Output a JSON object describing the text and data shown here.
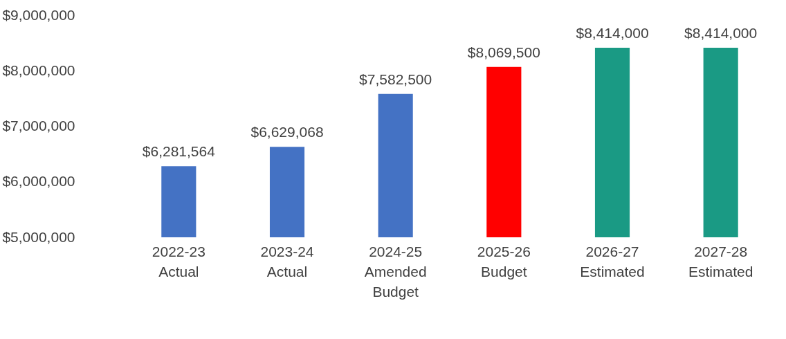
{
  "chart_data": {
    "type": "bar",
    "categories": [
      "2022-23\nActual",
      "2023-24\nActual",
      "2024-25\nAmended\nBudget",
      "2025-26\nBudget",
      "2026-27\nEstimated",
      "2027-28\nEstimated"
    ],
    "values": [
      6281564,
      6629068,
      7582500,
      8069500,
      8414000,
      8414000
    ],
    "colors": [
      "#4472c4",
      "#4472c4",
      "#4472c4",
      "#ff0000",
      "#1a9a84",
      "#1a9a84"
    ],
    "ylim": [
      5000000,
      9000000
    ],
    "yticks": [
      {
        "value": 5000000,
        "label": "$5,000,000"
      },
      {
        "value": 6000000,
        "label": "$6,000,000"
      },
      {
        "value": 7000000,
        "label": "$7,000,000"
      },
      {
        "value": 8000000,
        "label": "$8,000,000"
      },
      {
        "value": 9000000,
        "label": "$9,000,000"
      }
    ],
    "value_labels": [
      "$6,281,564",
      "$6,629,068",
      "$7,582,500",
      "$8,069,500",
      "$8,414,000",
      "$8,414,000"
    ],
    "grid": false
  }
}
